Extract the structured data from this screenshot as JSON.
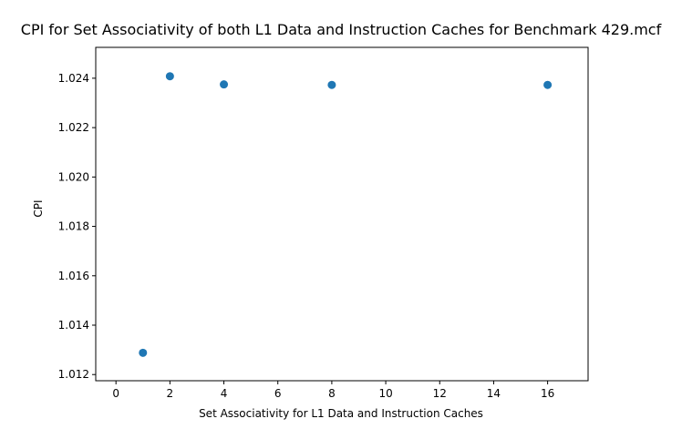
{
  "chart_data": {
    "type": "scatter",
    "title": "CPI for Set Associativity of both L1 Data and Instruction Caches for Benchmark 429.mcf",
    "xlabel": "Set Associativity for L1 Data and Instruction Caches",
    "ylabel": "CPI",
    "xlim": [
      -0.75,
      17.5
    ],
    "ylim": [
      1.01175,
      1.02525
    ],
    "xticks": [
      0,
      2,
      4,
      6,
      8,
      10,
      12,
      14,
      16
    ],
    "xtick_labels": [
      "0",
      "2",
      "4",
      "6",
      "8",
      "10",
      "12",
      "14",
      "16"
    ],
    "yticks": [
      1.012,
      1.014,
      1.016,
      1.018,
      1.02,
      1.022,
      1.024
    ],
    "ytick_labels": [
      "1.012",
      "1.014",
      "1.016",
      "1.018",
      "1.020",
      "1.022",
      "1.024"
    ],
    "grid": false,
    "legend": false,
    "series": [
      {
        "color": "#1f77b4",
        "points": [
          {
            "x": 1,
            "y": 1.01288
          },
          {
            "x": 2,
            "y": 1.02408
          },
          {
            "x": 4,
            "y": 1.02375
          },
          {
            "x": 8,
            "y": 1.02373
          },
          {
            "x": 16,
            "y": 1.02373
          }
        ]
      }
    ]
  }
}
